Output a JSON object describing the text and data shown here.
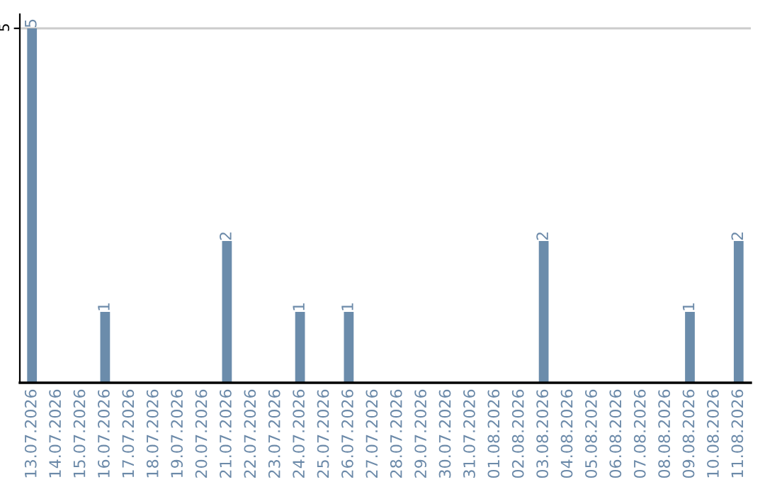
{
  "chart_data": {
    "type": "bar",
    "categories": [
      "13.07.2026",
      "14.07.2026",
      "15.07.2026",
      "16.07.2026",
      "17.07.2026",
      "18.07.2026",
      "19.07.2026",
      "20.07.2026",
      "21.07.2026",
      "22.07.2026",
      "23.07.2026",
      "24.07.2026",
      "25.07.2026",
      "26.07.2026",
      "27.07.2026",
      "28.07.2026",
      "29.07.2026",
      "30.07.2026",
      "31.07.2026",
      "01.08.2026",
      "02.08.2026",
      "03.08.2026",
      "04.08.2026",
      "05.08.2026",
      "06.08.2026",
      "07.08.2026",
      "08.08.2026",
      "09.08.2026",
      "10.08.2026",
      "11.08.2026"
    ],
    "values": [
      5,
      0,
      0,
      1,
      0,
      0,
      0,
      0,
      2,
      0,
      0,
      1,
      0,
      1,
      0,
      0,
      0,
      0,
      0,
      0,
      0,
      2,
      0,
      0,
      0,
      0,
      0,
      1,
      0,
      2
    ],
    "value_labels": [
      "5",
      null,
      null,
      "1",
      null,
      null,
      null,
      null,
      "2",
      null,
      null,
      "1",
      null,
      "1",
      null,
      null,
      null,
      null,
      null,
      null,
      null,
      "2",
      null,
      null,
      null,
      null,
      null,
      "1",
      null,
      "2"
    ],
    "color": "#6b8cab",
    "ylim": [
      0,
      5.2
    ],
    "yticks": [
      5
    ],
    "grid": "y",
    "legend": false
  }
}
